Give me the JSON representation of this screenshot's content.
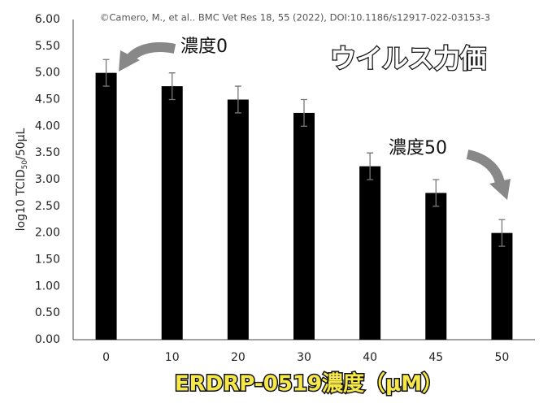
{
  "chart_data": {
    "type": "bar",
    "credit": "©Camero, M., et al.. BMC Vet Res 18, 55 (2022), DOI:10.1186/s12917-022-03153-3",
    "title": "ウイルス力価",
    "x_label": "ERDRP-0519濃度（μM）",
    "y_label": {
      "main": "log10 TCID",
      "sub": "50",
      "rest": "/50μL"
    },
    "annotations": [
      "濃度0",
      "濃度50"
    ],
    "categories": [
      "0",
      "10",
      "20",
      "30",
      "40",
      "45",
      "50"
    ],
    "values": [
      5.0,
      4.75,
      4.5,
      4.25,
      3.25,
      2.75,
      2.0
    ],
    "errors": [
      0.25,
      0.25,
      0.25,
      0.25,
      0.25,
      0.25,
      0.25
    ],
    "color": "#000000",
    "ylim": [
      0,
      6
    ],
    "yticks": [
      {
        "value": 0,
        "label": "0.00"
      },
      {
        "value": 0.5,
        "label": "0.50"
      },
      {
        "value": 1,
        "label": "1.00"
      },
      {
        "value": 1.5,
        "label": "1.50"
      },
      {
        "value": 2,
        "label": "2.00"
      },
      {
        "value": 2.5,
        "label": "2.50"
      },
      {
        "value": 3,
        "label": "3.00"
      },
      {
        "value": 3.5,
        "label": "3.50"
      },
      {
        "value": 4,
        "label": "4.00"
      },
      {
        "value": 4.5,
        "label": "4.50"
      },
      {
        "value": 5,
        "label": "5.00"
      },
      {
        "value": 5.5,
        "label": "5.50"
      },
      {
        "value": 6,
        "label": "6.00"
      }
    ],
    "grid": false
  }
}
